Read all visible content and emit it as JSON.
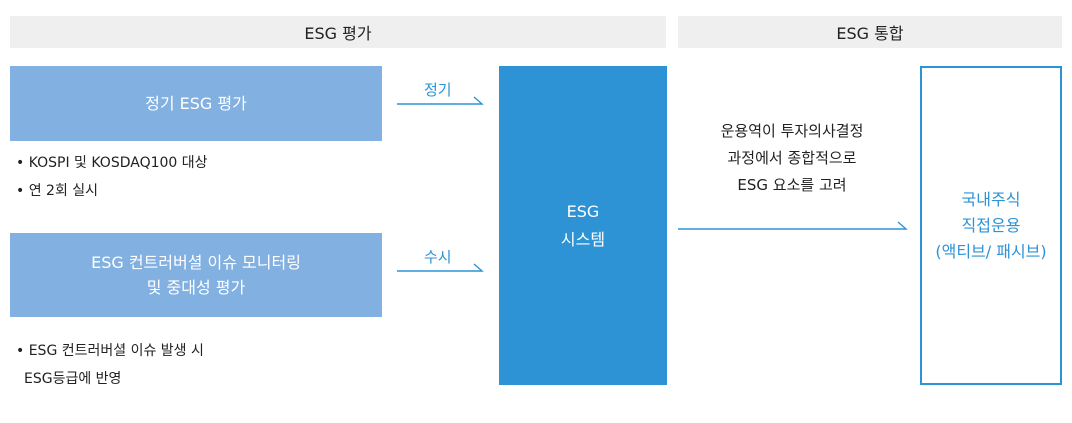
{
  "headers": {
    "evaluation": "ESG 평가",
    "integration": "ESG 통합"
  },
  "boxes": {
    "regular": {
      "lines": [
        "정기 ESG 평가"
      ]
    },
    "controversy": {
      "lines": [
        "ESG 컨트러버셜 이슈 모니터링",
        "및 중대성 평가"
      ]
    }
  },
  "bullets": {
    "regular": [
      "• KOSPI 및 KOSDAQ100 대상",
      "• 연 2회 실시"
    ],
    "controversy": [
      "• ESG 컨트러버셜 이슈 발생 시",
      "ESG등급에 반영"
    ]
  },
  "arrows": {
    "regular_label": "정기",
    "adhoc_label": "수시"
  },
  "system": {
    "lines": [
      "ESG",
      "시스템"
    ]
  },
  "note": {
    "lines": [
      "운용역이 투자의사결정",
      "과정에서 종합적으로",
      "ESG 요소를 고려"
    ]
  },
  "output": {
    "lines": [
      "국내주식",
      "직접운용",
      "(액티브/ 패시브)"
    ]
  },
  "colors": {
    "header_bg": "#efefef",
    "light_box": "#82b0e0",
    "system_box": "#2d93d5",
    "accent": "#2d93d5"
  }
}
